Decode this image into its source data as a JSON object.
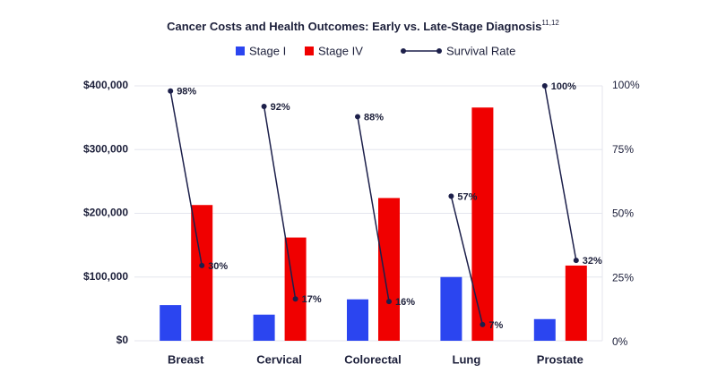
{
  "chart_data": {
    "type": "bar_line",
    "title": "Cancer Costs and Health Outcomes: Early vs. Late-Stage Diagnosis",
    "title_superscript": "11,12",
    "categories": [
      "Breast",
      "Cervical",
      "Colorectal",
      "Lung",
      "Prostate"
    ],
    "series": [
      {
        "name": "Stage I",
        "color": "#2b45f0",
        "values": [
          56000,
          41000,
          65000,
          100000,
          34000
        ]
      },
      {
        "name": "Stage IV",
        "color": "#f00000",
        "values": [
          213000,
          162000,
          224000,
          366000,
          118000
        ]
      }
    ],
    "line": {
      "name": "Survival Rate",
      "color": "#1c1f4a",
      "axis": "y2",
      "early": [
        98,
        92,
        88,
        57,
        100
      ],
      "early_labels": [
        "98%",
        "92%",
        "88%",
        "57%",
        "100%"
      ],
      "late": [
        30,
        17,
        16,
        7,
        32
      ],
      "late_labels": [
        "30%",
        "17%",
        "16%",
        "7%",
        "32%"
      ]
    },
    "ylim": [
      0,
      400000
    ],
    "yticks": [
      {
        "value": 0,
        "label": "$0"
      },
      {
        "value": 100000,
        "label": "$100,000"
      },
      {
        "value": 200000,
        "label": "$200,000"
      },
      {
        "value": 300000,
        "label": "$300,000"
      },
      {
        "value": 400000,
        "label": "$400,000"
      }
    ],
    "y2lim": [
      0,
      100
    ],
    "y2ticks": [
      {
        "value": 0,
        "label": "0%"
      },
      {
        "value": 25,
        "label": "25%"
      },
      {
        "value": 50,
        "label": "50%"
      },
      {
        "value": 75,
        "label": "75%"
      },
      {
        "value": 100,
        "label": "100%"
      }
    ],
    "grid": true
  }
}
